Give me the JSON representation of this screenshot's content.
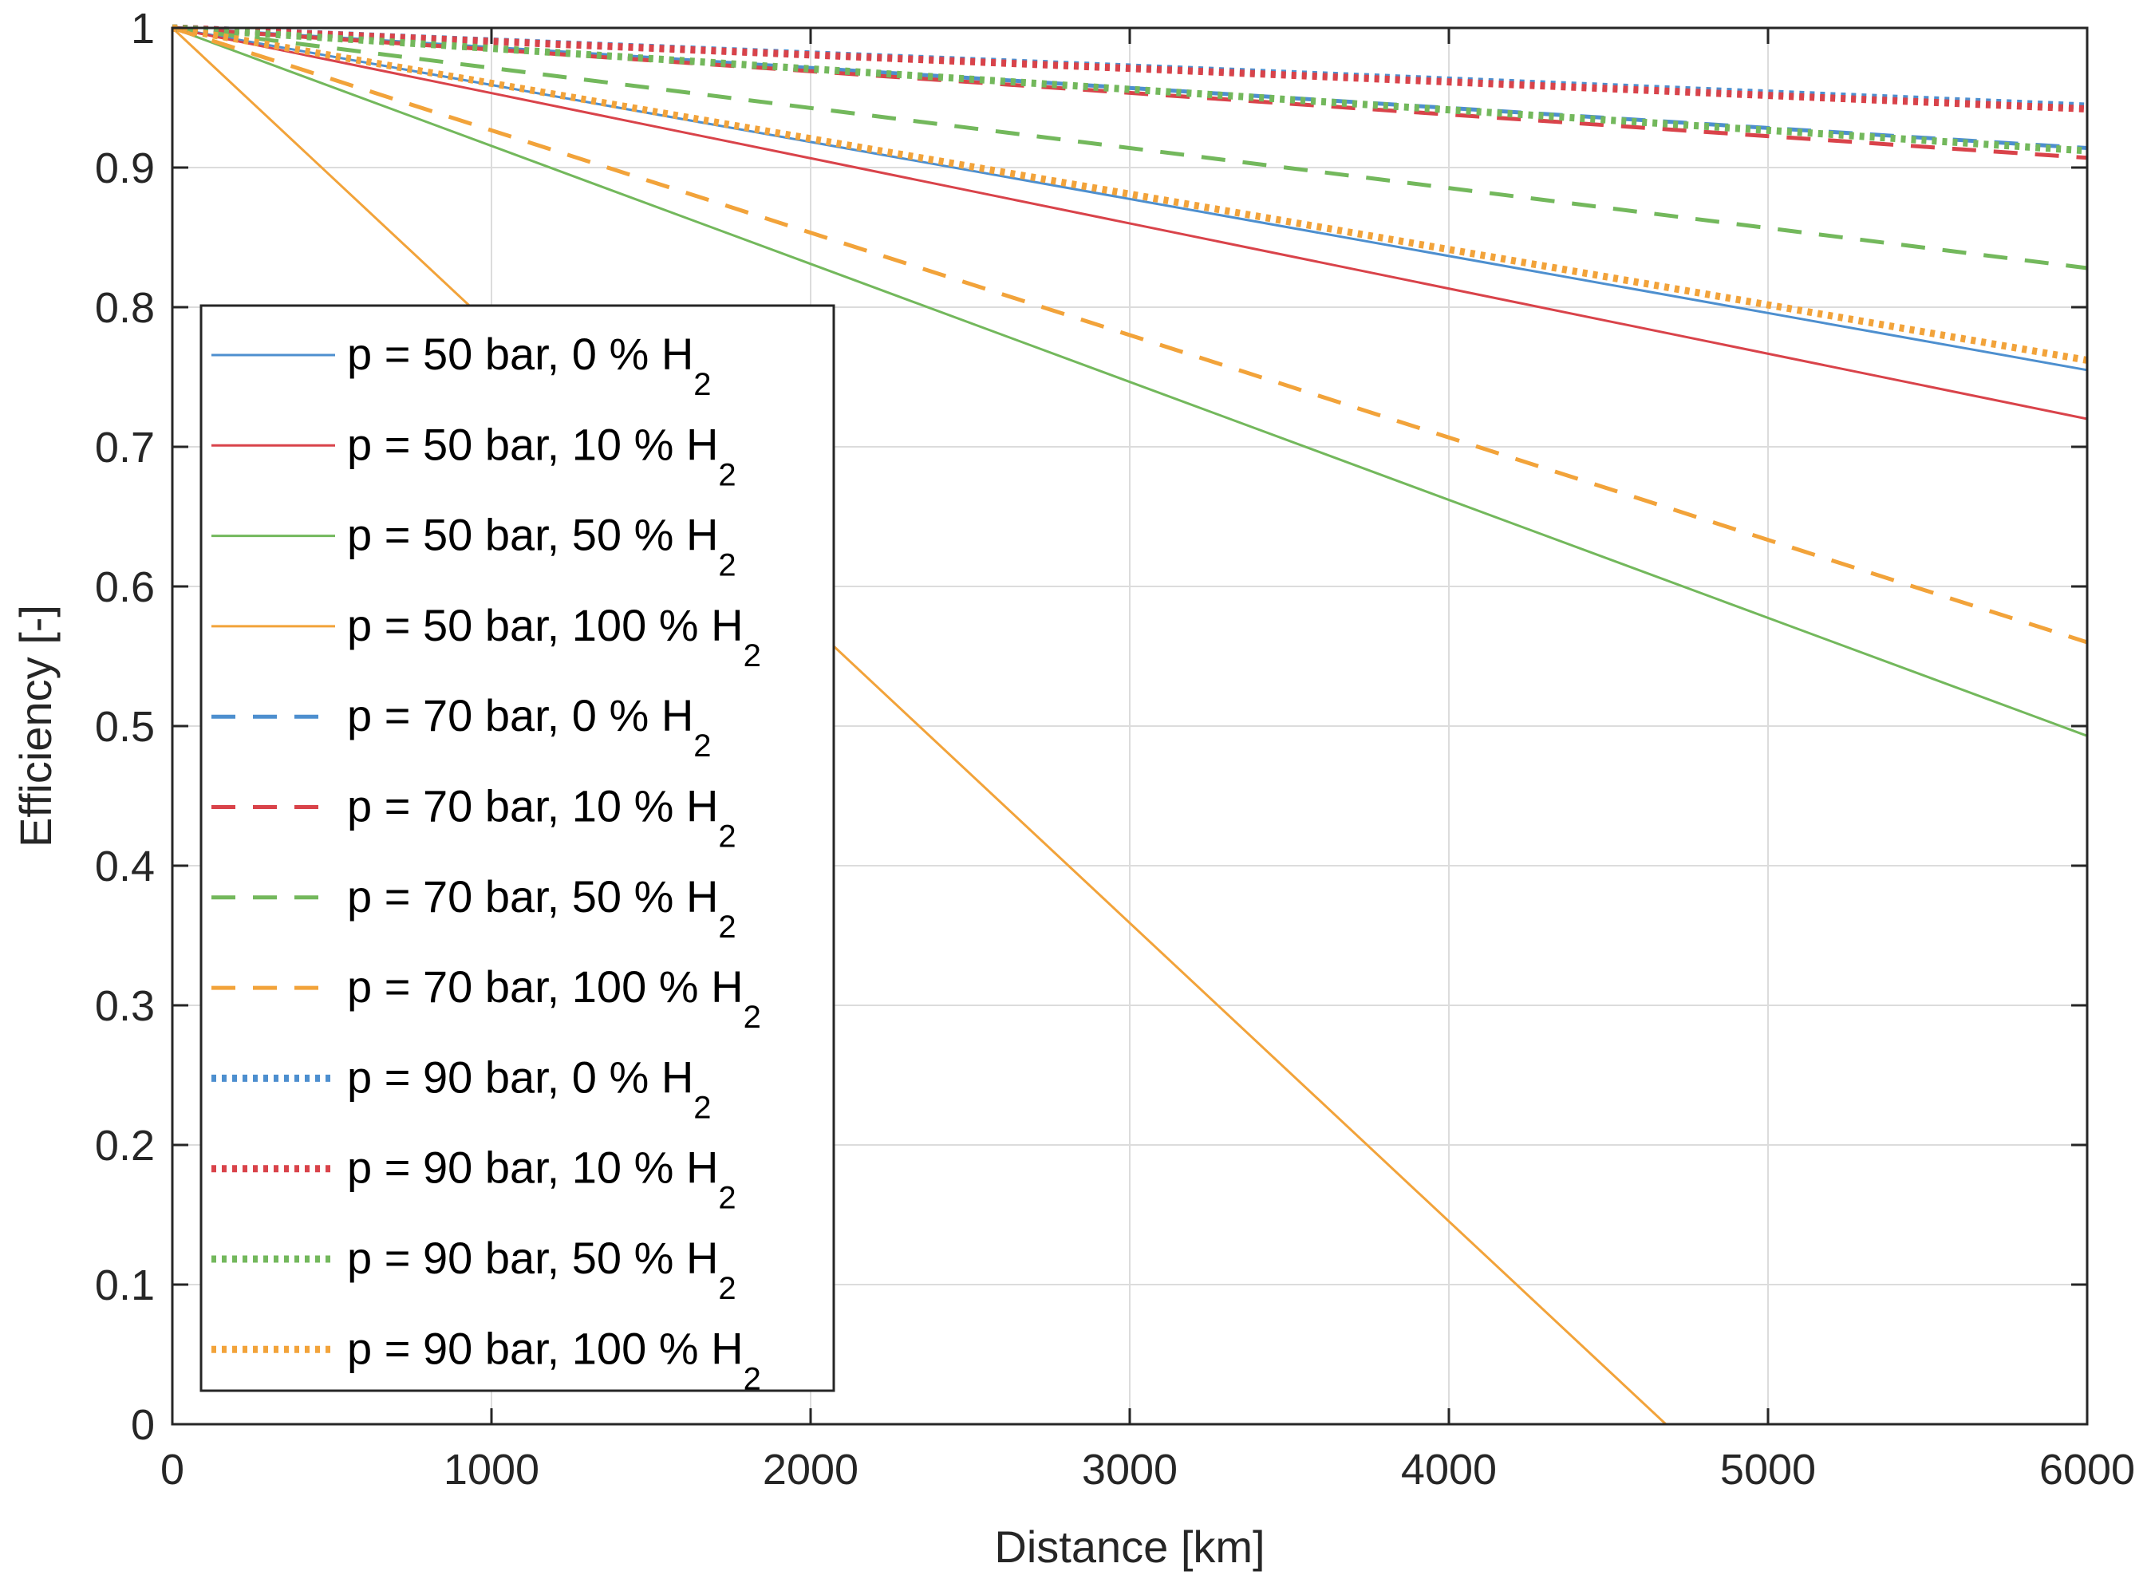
{
  "chart_data": {
    "type": "line",
    "title": "",
    "xlabel": "Distance [km]",
    "ylabel": "Efficiency [-]",
    "xlim": [
      0,
      6000
    ],
    "ylim": [
      0,
      1
    ],
    "x_ticks": [
      0,
      1000,
      2000,
      3000,
      4000,
      5000,
      6000
    ],
    "y_ticks": [
      0,
      0.1,
      0.2,
      0.3,
      0.4,
      0.5,
      0.6,
      0.7,
      0.8,
      0.9,
      1
    ],
    "x_tick_labels": [
      "0",
      "1000",
      "2000",
      "3000",
      "4000",
      "5000",
      "6000"
    ],
    "y_tick_labels": [
      "0",
      "0.1",
      "0.2",
      "0.3",
      "0.4",
      "0.5",
      "0.6",
      "0.7",
      "0.8",
      "0.9",
      "1"
    ],
    "grid": true,
    "legend_position": "left",
    "series": [
      {
        "name": "p = 50 bar, 0 % H",
        "subscript": "2",
        "color": "#4d8fcf",
        "style": "solid",
        "x": [
          0,
          6000
        ],
        "values": [
          1.0,
          0.755
        ]
      },
      {
        "name": "p = 50 bar, 10 % H",
        "subscript": "2",
        "color": "#d9434a",
        "style": "solid",
        "x": [
          0,
          6000
        ],
        "values": [
          1.0,
          0.72
        ]
      },
      {
        "name": "p = 50 bar, 50 % H",
        "subscript": "2",
        "color": "#73b85c",
        "style": "solid",
        "x": [
          0,
          6000
        ],
        "values": [
          1.0,
          0.493
        ]
      },
      {
        "name": "p = 50 bar, 100 % H",
        "subscript": "2",
        "color": "#f2a33a",
        "style": "solid",
        "x": [
          0,
          4680
        ],
        "values": [
          1.0,
          0.0
        ]
      },
      {
        "name": "p = 70 bar, 0 % H",
        "subscript": "2",
        "color": "#4d8fcf",
        "style": "dashed",
        "x": [
          0,
          6000
        ],
        "values": [
          1.0,
          0.914
        ]
      },
      {
        "name": "p = 70 bar, 10 % H",
        "subscript": "2",
        "color": "#d9434a",
        "style": "dashed",
        "x": [
          0,
          6000
        ],
        "values": [
          1.0,
          0.907
        ]
      },
      {
        "name": "p = 70 bar, 50 % H",
        "subscript": "2",
        "color": "#73b85c",
        "style": "dashed",
        "x": [
          0,
          6000
        ],
        "values": [
          1.0,
          0.828
        ]
      },
      {
        "name": "p = 70 bar, 100 % H",
        "subscript": "2",
        "color": "#f2a33a",
        "style": "dashed",
        "x": [
          0,
          6000
        ],
        "values": [
          1.0,
          0.56
        ]
      },
      {
        "name": "p = 90 bar, 0 % H",
        "subscript": "2",
        "color": "#4d8fcf",
        "style": "dotted",
        "x": [
          0,
          6000
        ],
        "values": [
          1.0,
          0.944
        ]
      },
      {
        "name": "p = 90 bar, 10 % H",
        "subscript": "2",
        "color": "#d9434a",
        "style": "dotted",
        "x": [
          0,
          6000
        ],
        "values": [
          1.0,
          0.942
        ]
      },
      {
        "name": "p = 90 bar, 50 % H",
        "subscript": "2",
        "color": "#73b85c",
        "style": "dotted",
        "x": [
          0,
          6000
        ],
        "values": [
          1.0,
          0.912
        ]
      },
      {
        "name": "p = 90 bar, 100 % H",
        "subscript": "2",
        "color": "#f2a33a",
        "style": "dotted",
        "x": [
          0,
          6000
        ],
        "values": [
          1.0,
          0.762
        ]
      }
    ]
  }
}
